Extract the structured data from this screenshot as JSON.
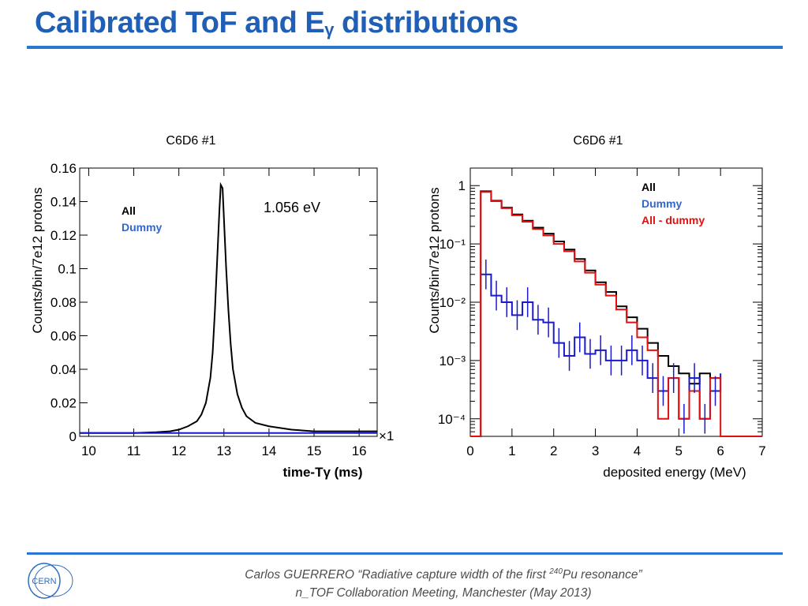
{
  "slide": {
    "title": "Calibrated ToF and E",
    "title_subscript": "γ",
    "title_suffix": " distributions",
    "footer_line1_pre": "Carlos GUERRERO “Radiative capture width of the first ",
    "footer_line1_sup": "240",
    "footer_line1_post": "Pu resonance”",
    "footer_line2": "n_TOF Collaboration Meeting, Manchester (May 2013)",
    "logo_text": "CERN"
  },
  "chart_data": [
    {
      "type": "line",
      "title": "C6D6 #1",
      "xlabel": "time-Tγ (ms)",
      "ylabel": "Counts/bin/7e12 protons",
      "xlim": [
        9.8,
        16.4
      ],
      "ylim": [
        0,
        0.16
      ],
      "x_ticks": [
        "10",
        "11",
        "12",
        "13",
        "14",
        "15",
        "16"
      ],
      "y_ticks": [
        "0",
        "0.02",
        "0.04",
        "0.06",
        "0.08",
        "0.1",
        "0.12",
        "0.14",
        "0.16"
      ],
      "x_multiplier": "×1",
      "annotation": "1.056 eV",
      "legend_position": "top-left",
      "series": [
        {
          "name": "All",
          "color": "#000000",
          "x": [
            9.8,
            10.5,
            11.0,
            11.5,
            11.8,
            12.0,
            12.2,
            12.4,
            12.5,
            12.6,
            12.7,
            12.75,
            12.8,
            12.85,
            12.9,
            12.93,
            12.97,
            13.0,
            13.05,
            13.1,
            13.15,
            13.2,
            13.3,
            13.4,
            13.5,
            13.7,
            14.0,
            14.5,
            15.0,
            15.5,
            16.0,
            16.4
          ],
          "y": [
            0.002,
            0.002,
            0.002,
            0.0025,
            0.003,
            0.004,
            0.006,
            0.009,
            0.013,
            0.02,
            0.035,
            0.05,
            0.075,
            0.105,
            0.135,
            0.15,
            0.148,
            0.13,
            0.1,
            0.075,
            0.055,
            0.04,
            0.025,
            0.017,
            0.012,
            0.008,
            0.006,
            0.004,
            0.003,
            0.003,
            0.003,
            0.003
          ]
        },
        {
          "name": "Dummy",
          "color": "#1a1acc",
          "x": [
            9.8,
            16.4
          ],
          "y": [
            0.002,
            0.002
          ]
        }
      ]
    },
    {
      "type": "line",
      "title": "C6D6 #1",
      "xlabel": "deposited energy (MeV)",
      "ylabel": "Counts/bin/7e12 protons",
      "xlim": [
        0,
        7
      ],
      "ylim": [
        5e-05,
        2
      ],
      "yscale": "log",
      "x_ticks": [
        "0",
        "1",
        "2",
        "3",
        "4",
        "5",
        "6",
        "7"
      ],
      "y_ticks": [
        "1",
        "10⁻¹",
        "10⁻²",
        "10⁻³",
        "10⁻⁴"
      ],
      "legend_position": "top-right",
      "series": [
        {
          "name": "All",
          "color": "#000000",
          "x": [
            0,
            0.25,
            0.5,
            0.75,
            1.0,
            1.25,
            1.5,
            1.75,
            2.0,
            2.25,
            2.5,
            2.75,
            3.0,
            3.25,
            3.5,
            3.75,
            4.0,
            4.25,
            4.5,
            4.75,
            5.0,
            5.25,
            5.5,
            5.75,
            6.0
          ],
          "y": [
            5e-05,
            0.8,
            0.55,
            0.42,
            0.32,
            0.25,
            0.19,
            0.15,
            0.11,
            0.08,
            0.055,
            0.035,
            0.022,
            0.015,
            0.0085,
            0.0055,
            0.0035,
            0.002,
            0.0012,
            0.0008,
            0.0006,
            0.0004,
            0.0006,
            0.0005,
            0.0005
          ]
        },
        {
          "name": "Dummy",
          "color": "#1a1acc",
          "x": [
            0.25,
            0.5,
            0.75,
            1.0,
            1.25,
            1.5,
            1.75,
            2.0,
            2.25,
            2.5,
            2.75,
            3.0,
            3.25,
            3.5,
            3.75,
            4.0,
            4.25,
            4.5,
            4.75,
            5.0,
            5.25,
            5.5,
            5.75,
            6.0
          ],
          "y": [
            0.03,
            0.013,
            0.01,
            0.006,
            0.01,
            0.005,
            0.0045,
            0.002,
            0.0012,
            0.0025,
            0.0013,
            0.0015,
            0.001,
            0.001,
            0.0015,
            0.001,
            0.0005,
            0.0003,
            0.0005,
            0.0001,
            0.0005,
            0.0001,
            0.0003,
            0.0006
          ]
        },
        {
          "name": "All - dummy",
          "color": "#e01010",
          "x": [
            0,
            0.25,
            0.5,
            0.75,
            1.0,
            1.25,
            1.5,
            1.75,
            2.0,
            2.25,
            2.5,
            2.75,
            3.0,
            3.25,
            3.5,
            3.75,
            4.0,
            4.25,
            4.5,
            4.75,
            5.0,
            5.25,
            5.5,
            5.75,
            6.0,
            7.0
          ],
          "y": [
            5e-05,
            0.78,
            0.54,
            0.41,
            0.31,
            0.24,
            0.18,
            0.14,
            0.1,
            0.075,
            0.05,
            0.032,
            0.02,
            0.013,
            0.0075,
            0.0045,
            0.0025,
            0.0015,
            0.0001,
            0.0005,
            0.0001,
            0.0003,
            0.0001,
            0.0005,
            5e-05,
            5e-05
          ]
        }
      ]
    }
  ]
}
